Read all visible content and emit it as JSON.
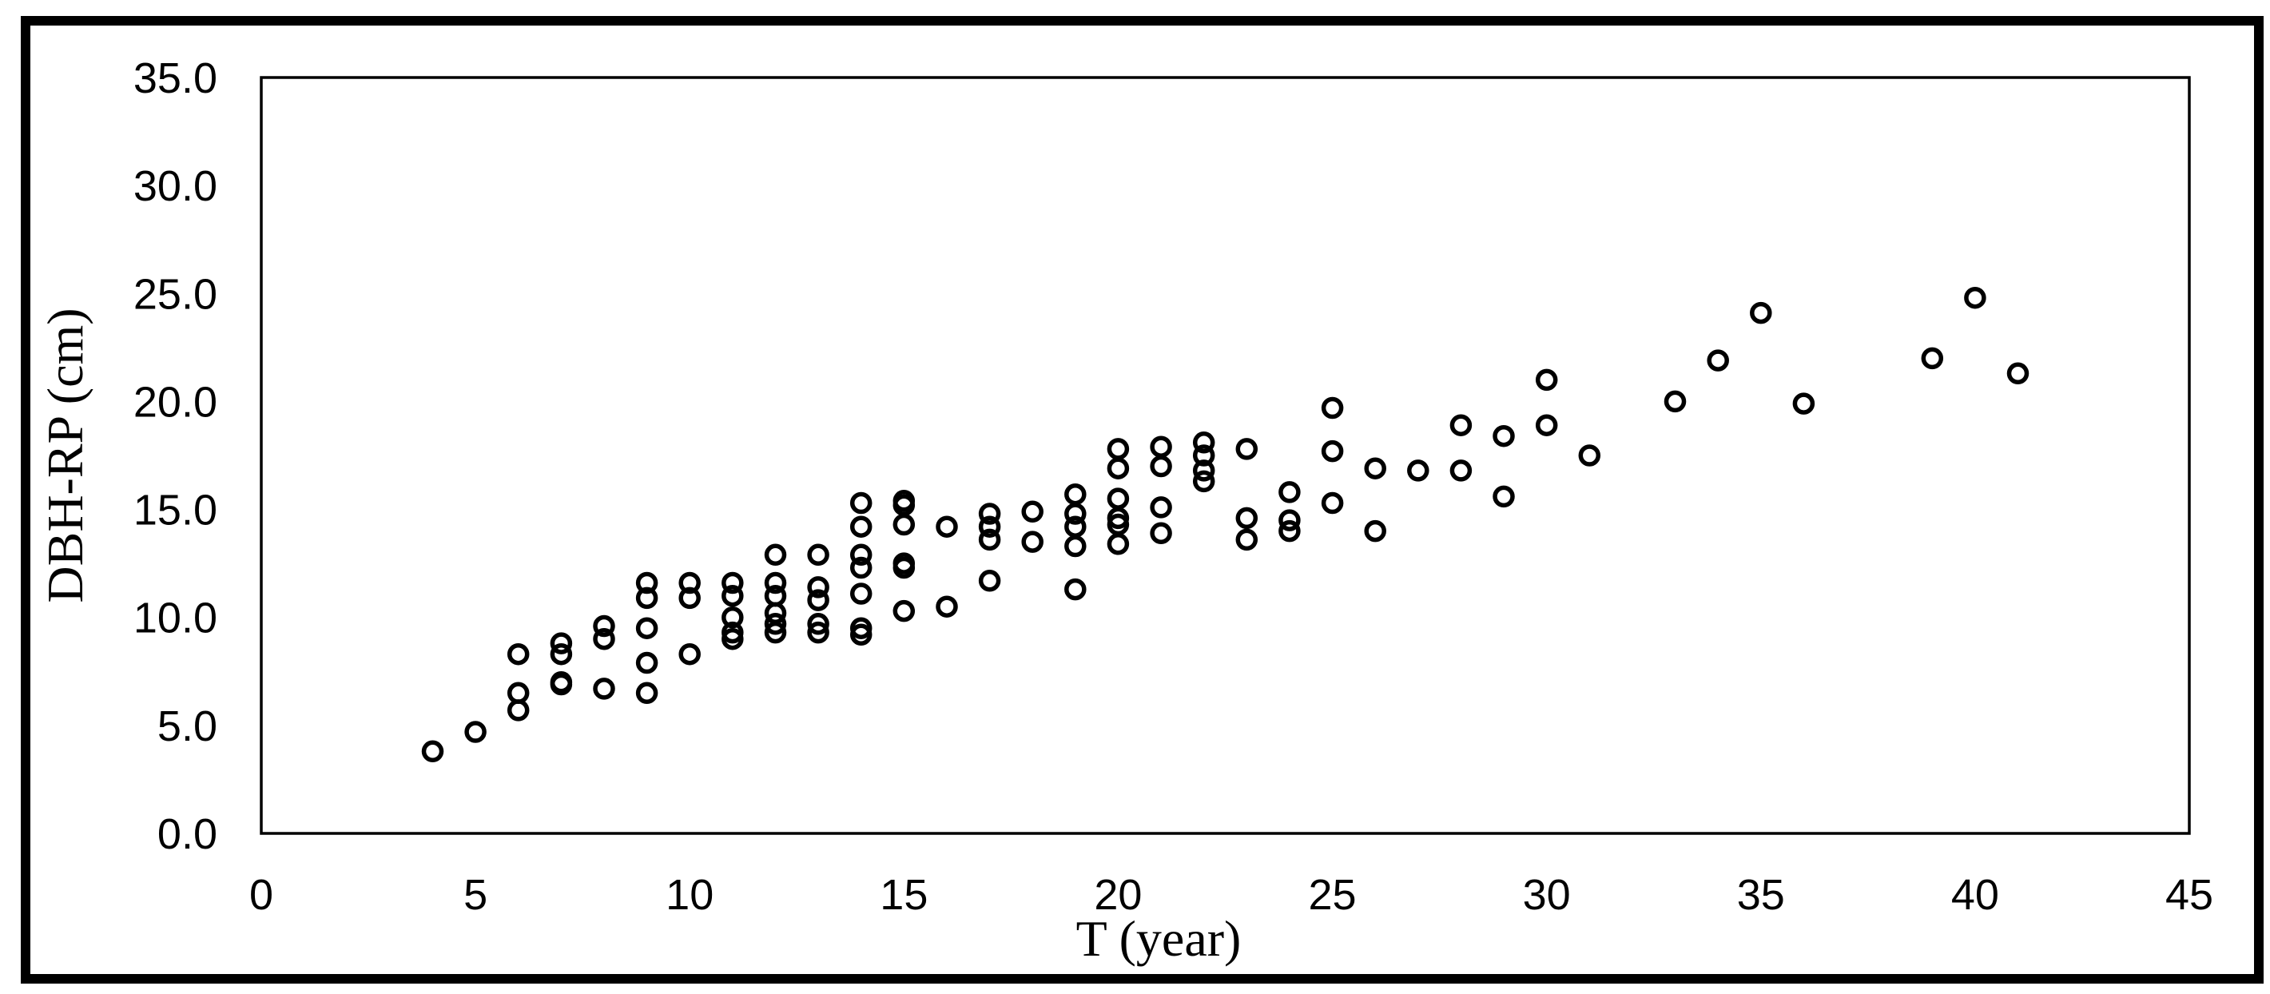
{
  "chart_data": {
    "type": "scatter",
    "title": "",
    "xlabel": "T (year)",
    "ylabel": "DBH-RP (cm)",
    "xlim": [
      0,
      45
    ],
    "ylim": [
      0.0,
      35.0
    ],
    "grid": false,
    "legend": "none",
    "marker": {
      "shape": "open-circle",
      "color": "#000000"
    },
    "axis_color": "#000000",
    "background_color": "#ffffff",
    "border_color": "#000000",
    "x_ticks": {
      "values": [
        0,
        5,
        10,
        15,
        20,
        25,
        30,
        35,
        40,
        45
      ],
      "labels": [
        "0",
        "5",
        "10",
        "15",
        "20",
        "25",
        "30",
        "35",
        "40",
        "45"
      ]
    },
    "y_ticks": {
      "values": [
        0,
        5,
        10,
        15,
        20,
        25,
        30,
        35
      ],
      "labels": [
        "0.0",
        "5.0",
        "10.0",
        "15.0",
        "20.0",
        "25.0",
        "30.0",
        "35.0"
      ]
    },
    "series": [
      {
        "name": "DBH-RP",
        "points": [
          [
            4,
            3.8
          ],
          [
            5,
            4.7
          ],
          [
            6,
            8.3
          ],
          [
            6,
            6.5
          ],
          [
            6,
            5.7
          ],
          [
            7,
            8.8
          ],
          [
            7,
            8.3
          ],
          [
            7,
            7.0
          ],
          [
            7,
            6.9
          ],
          [
            8,
            9.6
          ],
          [
            8,
            9.0
          ],
          [
            8,
            6.7
          ],
          [
            9,
            11.6
          ],
          [
            9,
            10.9
          ],
          [
            9,
            9.5
          ],
          [
            9,
            7.9
          ],
          [
            9,
            6.5
          ],
          [
            10,
            11.6
          ],
          [
            10,
            10.9
          ],
          [
            10,
            8.3
          ],
          [
            11,
            11.6
          ],
          [
            11,
            11.0
          ],
          [
            11,
            10.0
          ],
          [
            11,
            9.3
          ],
          [
            11,
            9.0
          ],
          [
            12,
            12.9
          ],
          [
            12,
            11.6
          ],
          [
            12,
            11.0
          ],
          [
            12,
            10.2
          ],
          [
            12,
            9.7
          ],
          [
            12,
            9.3
          ],
          [
            13,
            12.9
          ],
          [
            13,
            11.4
          ],
          [
            13,
            10.8
          ],
          [
            13,
            9.7
          ],
          [
            13,
            9.3
          ],
          [
            14,
            15.3
          ],
          [
            14,
            14.2
          ],
          [
            14,
            12.9
          ],
          [
            14,
            12.3
          ],
          [
            14,
            11.1
          ],
          [
            14,
            9.5
          ],
          [
            14,
            9.2
          ],
          [
            15,
            15.4
          ],
          [
            15,
            15.2
          ],
          [
            15,
            14.3
          ],
          [
            15,
            12.5
          ],
          [
            15,
            12.3
          ],
          [
            15,
            10.3
          ],
          [
            16,
            14.2
          ],
          [
            16,
            10.5
          ],
          [
            17,
            14.8
          ],
          [
            17,
            14.2
          ],
          [
            17,
            13.6
          ],
          [
            17,
            11.7
          ],
          [
            18,
            14.9
          ],
          [
            18,
            13.5
          ],
          [
            19,
            15.7
          ],
          [
            19,
            14.8
          ],
          [
            19,
            14.2
          ],
          [
            19,
            13.3
          ],
          [
            19,
            11.3
          ],
          [
            20,
            17.8
          ],
          [
            20,
            16.9
          ],
          [
            20,
            15.5
          ],
          [
            20,
            14.6
          ],
          [
            20,
            14.3
          ],
          [
            20,
            13.4
          ],
          [
            21,
            17.9
          ],
          [
            21,
            17.0
          ],
          [
            21,
            15.1
          ],
          [
            21,
            13.9
          ],
          [
            22,
            18.1
          ],
          [
            22,
            17.5
          ],
          [
            22,
            16.8
          ],
          [
            22,
            16.3
          ],
          [
            23,
            17.8
          ],
          [
            23,
            14.6
          ],
          [
            23,
            13.6
          ],
          [
            24,
            15.8
          ],
          [
            24,
            14.5
          ],
          [
            24,
            14.0
          ],
          [
            25,
            19.7
          ],
          [
            25,
            17.7
          ],
          [
            25,
            15.3
          ],
          [
            26,
            16.9
          ],
          [
            26,
            14.0
          ],
          [
            27,
            16.8
          ],
          [
            28,
            18.9
          ],
          [
            28,
            16.8
          ],
          [
            29,
            18.4
          ],
          [
            29,
            15.6
          ],
          [
            30,
            21.0
          ],
          [
            30,
            18.9
          ],
          [
            31,
            17.5
          ],
          [
            33,
            20.0
          ],
          [
            34,
            21.9
          ],
          [
            35,
            24.1
          ],
          [
            36,
            19.9
          ],
          [
            39,
            22.0
          ],
          [
            40,
            24.8
          ],
          [
            41,
            21.3
          ]
        ]
      }
    ]
  }
}
